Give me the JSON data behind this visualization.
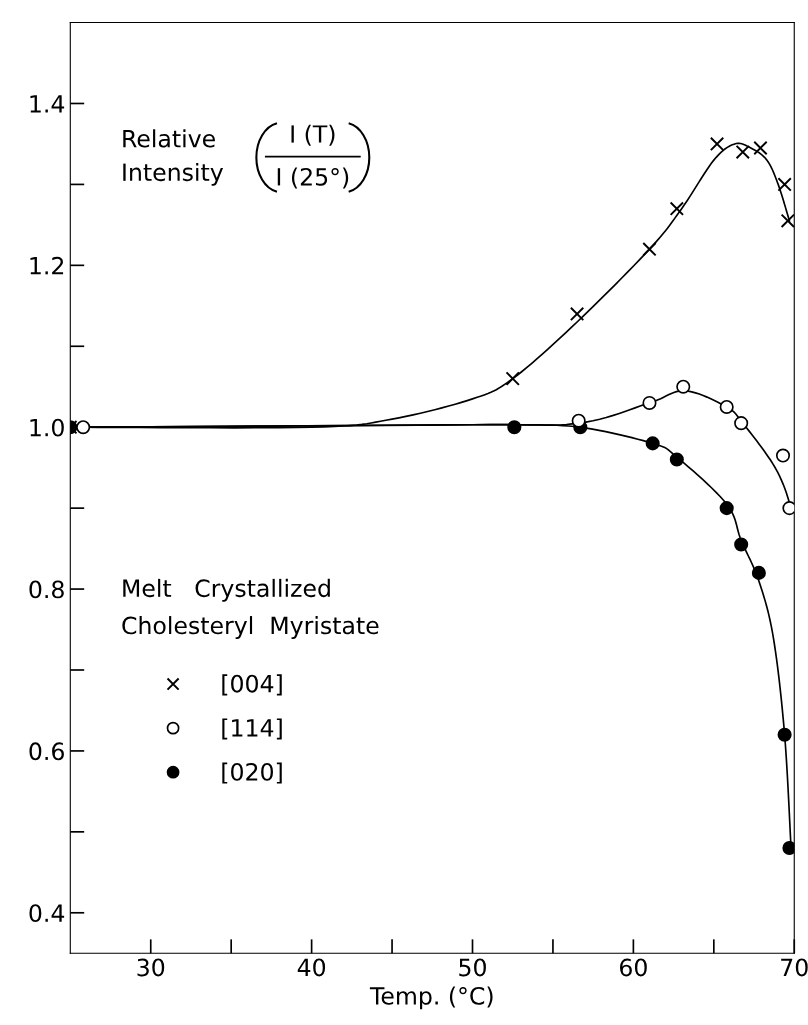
{
  "chart_data": {
    "type": "scatter",
    "xlabel": "Temp. (°C)",
    "xlim": [
      25,
      70
    ],
    "ylim": [
      0.35,
      1.5
    ],
    "xticks": [
      30,
      {
        "value": 35,
        "label": null
      },
      40,
      {
        "value": 45,
        "label": null
      },
      50,
      {
        "value": 55,
        "label": null
      },
      60,
      {
        "value": 65,
        "label": null
      },
      70
    ],
    "yticks": [
      0.4,
      {
        "value": 0.5,
        "label": null
      },
      0.6,
      {
        "value": 0.7,
        "label": null
      },
      0.8,
      {
        "value": 0.9,
        "label": null
      },
      {
        "value": 1.0,
        "label": "1.0"
      },
      {
        "value": 1.1,
        "label": null
      },
      1.2,
      {
        "value": 1.3,
        "label": null
      },
      1.4
    ],
    "grid": false,
    "legend": "left",
    "annotations": [
      "Relative\nIntensity",
      "I (T)",
      "I (25°)",
      "Melt   Crystallized\nCholesteryl  Myristate"
    ],
    "series": [
      {
        "type": "line",
        "color": "#000000",
        "x": [
          25,
          40,
          45,
          50,
          52.5,
          56.5,
          61,
          63,
          65,
          66.3,
          67.3,
          68.3,
          69,
          69.7
        ],
        "values": [
          1.0,
          1.0,
          1.01,
          1.035,
          1.06,
          1.13,
          1.22,
          1.27,
          1.33,
          1.35,
          1.345,
          1.33,
          1.3,
          1.255
        ]
      },
      {
        "type": "line",
        "color": "#000000",
        "x": [
          25,
          50,
          56.6,
          61,
          63.2,
          65.8,
          66.8,
          68.5,
          69.3,
          69.8
        ],
        "values": [
          1.0,
          1.003,
          1.005,
          1.03,
          1.045,
          1.025,
          1.005,
          0.96,
          0.93,
          0.9
        ]
      },
      {
        "type": "line",
        "color": "#000000",
        "x": [
          25,
          50,
          52.6,
          56.7,
          61.2,
          62.7,
          65.8,
          66.7,
          67.8,
          68.7,
          69.4,
          69.8
        ],
        "values": [
          1.0,
          1.003,
          1.003,
          1.0,
          0.98,
          0.963,
          0.905,
          0.86,
          0.81,
          0.74,
          0.62,
          0.48
        ]
      },
      {
        "name": "[004]",
        "marker": "cross",
        "color": "#000000",
        "x": [
          25,
          52.5,
          56.5,
          61,
          62.7,
          65.2,
          66.8,
          67.9,
          69.4,
          69.6
        ],
        "values": [
          1.0,
          1.06,
          1.14,
          1.22,
          1.27,
          1.35,
          1.34,
          1.345,
          1.3,
          1.255
        ]
      },
      {
        "name": "[114]",
        "marker": "circle",
        "color": "#ffffff",
        "x": [
          25.8,
          56.6,
          61,
          63.1,
          65.8,
          66.7,
          69.3,
          69.7
        ],
        "values": [
          1.0,
          1.008,
          1.03,
          1.05,
          1.025,
          1.005,
          0.965,
          0.9
        ]
      },
      {
        "name": "[020]",
        "marker": "circle",
        "color": "#000000",
        "x": [
          25,
          52.6,
          56.7,
          61.2,
          62.7,
          65.8,
          66.7,
          67.8,
          69.4,
          69.7
        ],
        "values": [
          1.0,
          1.0,
          1.0,
          0.98,
          0.96,
          0.9,
          0.855,
          0.82,
          0.62,
          0.48
        ]
      }
    ]
  }
}
